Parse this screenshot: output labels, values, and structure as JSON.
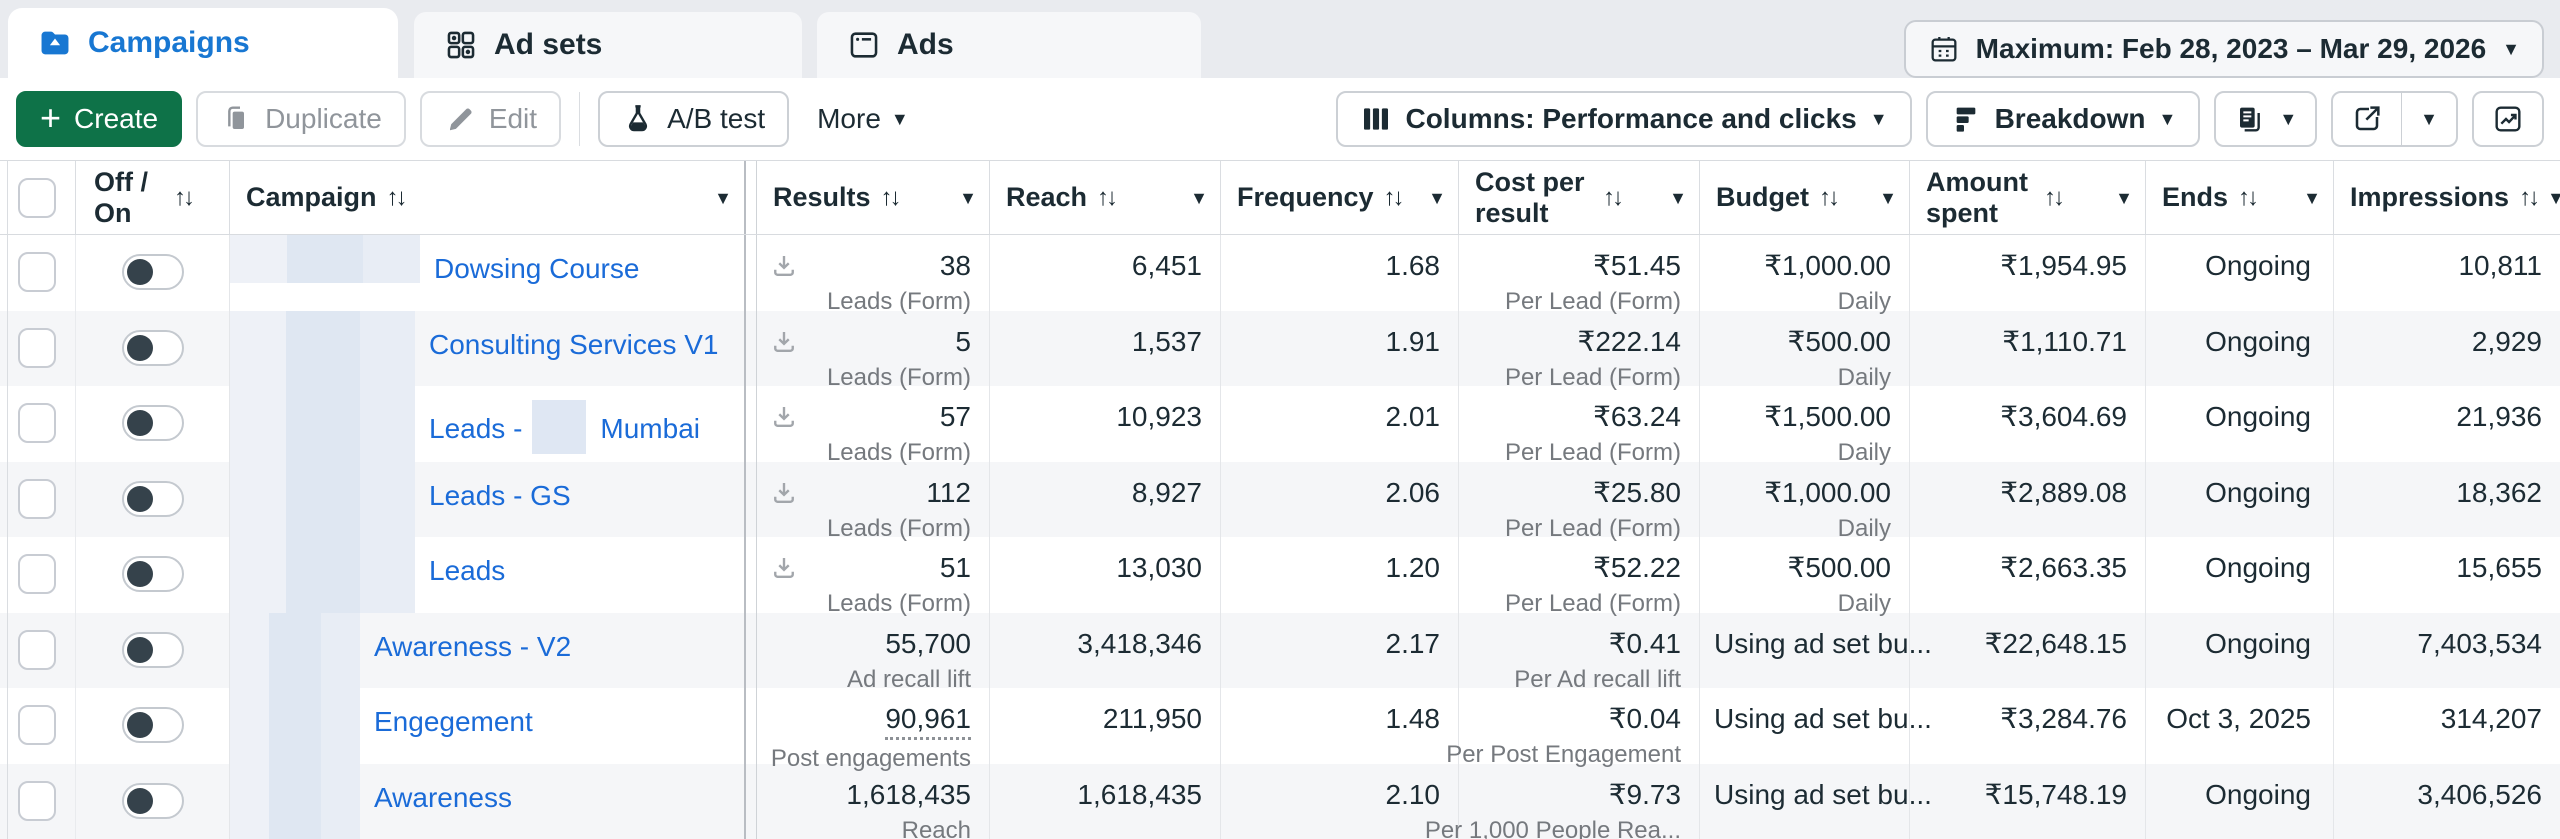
{
  "tabs": {
    "campaigns": "Campaigns",
    "ad_sets": "Ad sets",
    "ads": "Ads"
  },
  "date_filter": "Maximum: Feb 28, 2023 – Mar 29, 2026",
  "toolbar": {
    "create": "Create",
    "duplicate": "Duplicate",
    "edit": "Edit",
    "ab_test": "A/B test",
    "more": "More",
    "columns": "Columns: Performance and clicks",
    "breakdown": "Breakdown"
  },
  "colors": {
    "accent_blue": "#1877d2",
    "link_blue": "#1a6bd8",
    "create_green": "#0e7248",
    "row_stripe": "#f5f6f8",
    "toggle_knob": "#35424b"
  },
  "table": {
    "headers": {
      "off_on": "Off / On",
      "campaign": "Campaign",
      "results": "Results",
      "reach": "Reach",
      "frequency": "Frequency",
      "cost_per_result": "Cost per result",
      "budget": "Budget",
      "amount_spent": "Amount spent",
      "ends": "Ends",
      "impressions": "Impressions"
    },
    "rows": [
      {
        "prefix": "",
        "name": "Dowsing Course",
        "mid": false,
        "redact_w": 190,
        "redact_h": "64%",
        "toggle_on": false,
        "download": true,
        "underline": false,
        "results": "38",
        "results_sub": "Leads (Form)",
        "reach": "6,451",
        "frequency": "1.68",
        "cost": "₹51.45",
        "cost_sub": "Per Lead (Form)",
        "budget": "₹1,000.00",
        "budget_sub": "Daily",
        "budget_left": false,
        "spent": "₹1,954.95",
        "ends": "Ongoing",
        "impressions": "10,811"
      },
      {
        "prefix": "",
        "name": "Consulting Services V1",
        "mid": false,
        "redact_w": 185,
        "redact_h": "100%",
        "toggle_on": false,
        "download": true,
        "underline": false,
        "results": "5",
        "results_sub": "Leads (Form)",
        "reach": "1,537",
        "frequency": "1.91",
        "cost": "₹222.14",
        "cost_sub": "Per Lead (Form)",
        "budget": "₹500.00",
        "budget_sub": "Daily",
        "budget_left": false,
        "spent": "₹1,110.71",
        "ends": "Ongoing",
        "impressions": "2,929"
      },
      {
        "prefix": "Leads -",
        "name": "Mumbai",
        "mid": true,
        "redact_w": 185,
        "redact_h": "100%",
        "toggle_on": false,
        "download": true,
        "underline": false,
        "results": "57",
        "results_sub": "Leads (Form)",
        "reach": "10,923",
        "frequency": "2.01",
        "cost": "₹63.24",
        "cost_sub": "Per Lead (Form)",
        "budget": "₹1,500.00",
        "budget_sub": "Daily",
        "budget_left": false,
        "spent": "₹3,604.69",
        "ends": "Ongoing",
        "impressions": "21,936"
      },
      {
        "prefix": "",
        "name": "Leads - GS",
        "mid": false,
        "redact_w": 185,
        "redact_h": "100%",
        "toggle_on": false,
        "download": true,
        "underline": false,
        "results": "112",
        "results_sub": "Leads (Form)",
        "reach": "8,927",
        "frequency": "2.06",
        "cost": "₹25.80",
        "cost_sub": "Per Lead (Form)",
        "budget": "₹1,000.00",
        "budget_sub": "Daily",
        "budget_left": false,
        "spent": "₹2,889.08",
        "ends": "Ongoing",
        "impressions": "18,362"
      },
      {
        "prefix": "",
        "name": "Leads",
        "mid": false,
        "redact_w": 185,
        "redact_h": "100%",
        "toggle_on": false,
        "download": true,
        "underline": false,
        "results": "51",
        "results_sub": "Leads (Form)",
        "reach": "13,030",
        "frequency": "1.20",
        "cost": "₹52.22",
        "cost_sub": "Per Lead (Form)",
        "budget": "₹500.00",
        "budget_sub": "Daily",
        "budget_left": false,
        "spent": "₹2,663.35",
        "ends": "Ongoing",
        "impressions": "15,655"
      },
      {
        "prefix": "",
        "name": "Awareness - V2",
        "mid": false,
        "redact_w": 130,
        "redact_h": "100%",
        "toggle_on": false,
        "download": false,
        "underline": false,
        "results": "55,700",
        "results_sub": "Ad recall lift",
        "reach": "3,418,346",
        "frequency": "2.17",
        "cost": "₹0.41",
        "cost_sub": "Per Ad recall lift",
        "budget": "Using ad set bu...",
        "budget_sub": "",
        "budget_left": true,
        "spent": "₹22,648.15",
        "ends": "Ongoing",
        "impressions": "7,403,534"
      },
      {
        "prefix": "",
        "name": "Engegement",
        "mid": false,
        "redact_w": 130,
        "redact_h": "100%",
        "toggle_on": false,
        "download": false,
        "underline": true,
        "results": "90,961",
        "results_sub": "Post engagements",
        "reach": "211,950",
        "frequency": "1.48",
        "cost": "₹0.04",
        "cost_sub": "Per Post Engagement",
        "budget": "Using ad set bu...",
        "budget_sub": "",
        "budget_left": true,
        "spent": "₹3,284.76",
        "ends": "Oct 3, 2025",
        "impressions": "314,207"
      },
      {
        "prefix": "",
        "name": "Awareness",
        "mid": false,
        "redact_w": 130,
        "redact_h": "100%",
        "toggle_on": false,
        "download": false,
        "underline": false,
        "results": "1,618,435",
        "results_sub": "Reach",
        "reach": "1,618,435",
        "frequency": "2.10",
        "cost": "₹9.73",
        "cost_sub": "Per 1,000 People Rea...",
        "budget": "Using ad set bu...",
        "budget_sub": "",
        "budget_left": true,
        "spent": "₹15,748.19",
        "ends": "Ongoing",
        "impressions": "3,406,526"
      }
    ]
  }
}
